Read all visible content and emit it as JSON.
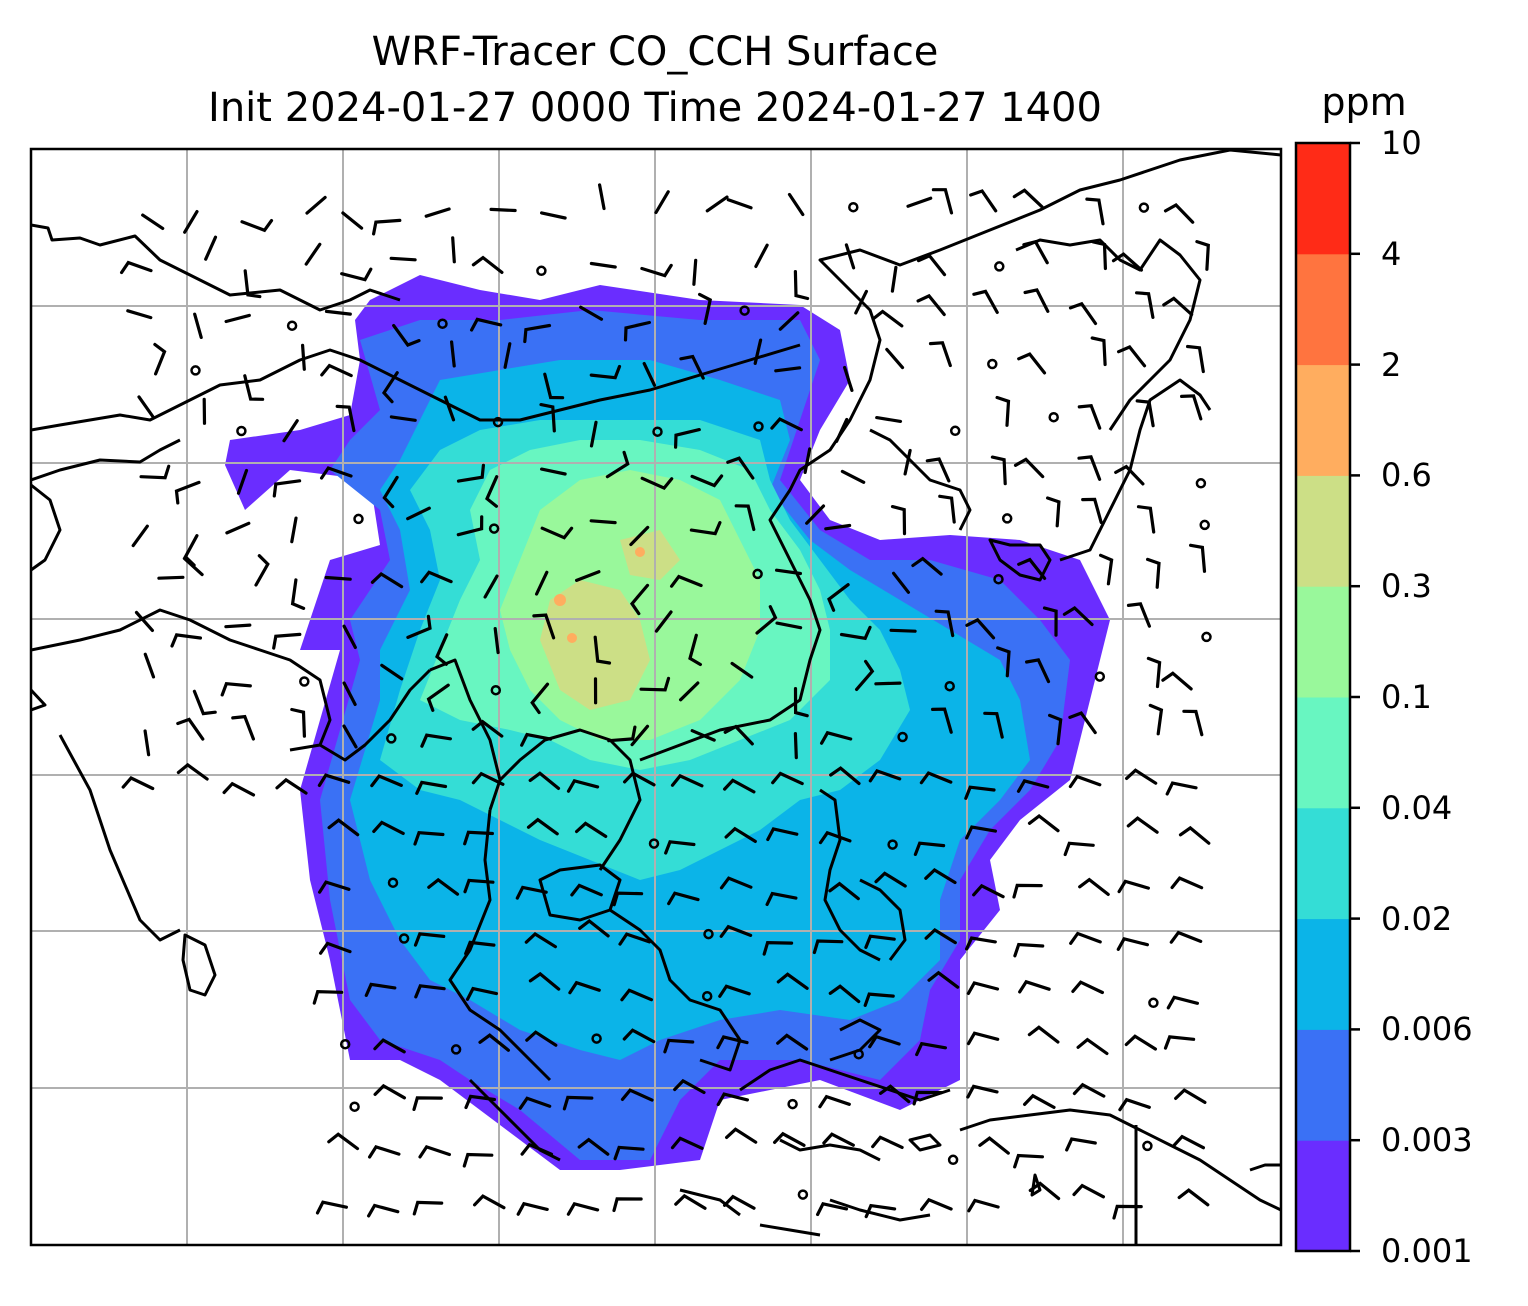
{
  "title": {
    "line1": "WRF-Tracer CO_CCH Surface",
    "line2": "Init 2024-01-27 0000 Time 2024-01-27 1400"
  },
  "colorbar": {
    "unit": "ppm",
    "ticks": [
      "10",
      "4",
      "2",
      "0.6",
      "0.3",
      "0.1",
      "0.04",
      "0.02",
      "0.006",
      "0.003",
      "0.001"
    ],
    "colors": [
      "#6a2dff",
      "#3a71f5",
      "#0bb4e8",
      "#34ddd6",
      "#68f6c1",
      "#99f89b",
      "#ccdf86",
      "#ffad5f",
      "#ff743f",
      "#ff2b17"
    ]
  },
  "map": {
    "legend_scale": "discrete",
    "gridlines": true,
    "overlay": "surface wind barbs and calm circles",
    "coastline_color": "#000000"
  }
}
